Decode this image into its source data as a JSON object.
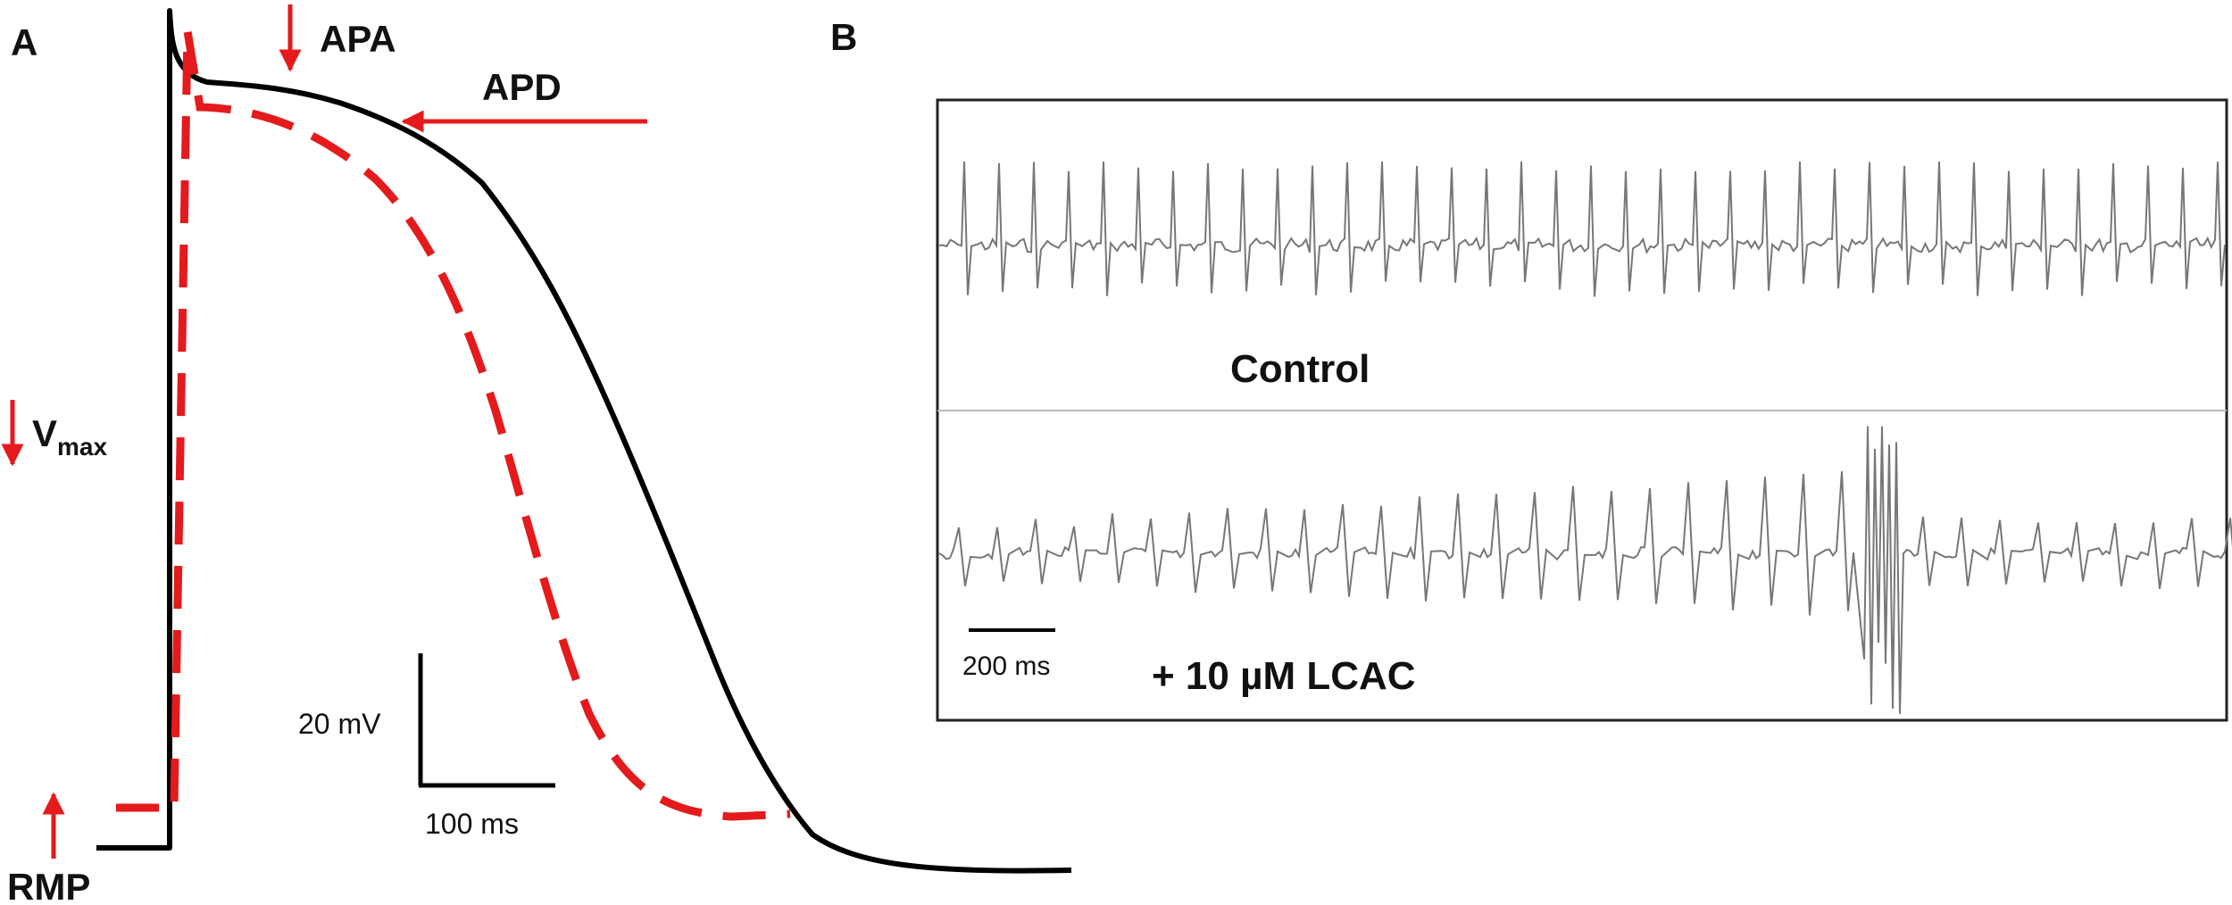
{
  "panel_a": {
    "panel_label": "A",
    "annotations": {
      "apa": "APA",
      "apd": "APD",
      "vmax_main": "V",
      "vmax_sub": "max",
      "rmp": "RMP"
    },
    "scale_bar": {
      "voltage_label": "20 mV",
      "time_label": "100 ms"
    }
  },
  "panel_b": {
    "panel_label": "B",
    "trace_top_label": "Control",
    "trace_bottom_label": "+ 10 µM LCAC",
    "scale_bar_label": "200 ms"
  },
  "colors": {
    "control_trace": "#000000",
    "treated_trace": "#e41a1c",
    "annotation_arrow": "#e41a1c",
    "ecg_trace": "#777777",
    "frame": "#222222"
  }
}
